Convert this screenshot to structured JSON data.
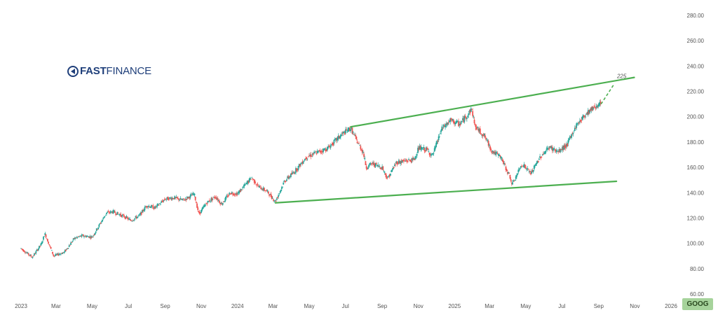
{
  "brand": {
    "name_bold": "FAST",
    "name_regular": "FINANCE",
    "suffix": ""
  },
  "ticker": "GOOG",
  "colors": {
    "up": "#26a69a",
    "down": "#ef5350",
    "trend": "#4caf50",
    "text": "#555555",
    "badge": "#a6d39b"
  },
  "chart_data": {
    "type": "candlestick",
    "symbol": "GOOG",
    "ylim": [
      60,
      290
    ],
    "y_ticks": [
      "60.00",
      "80.00",
      "100.00",
      "120.00",
      "140.00",
      "160.00",
      "180.00",
      "200.00",
      "220.00",
      "240.00",
      "260.00",
      "280.00"
    ],
    "x_ticks": [
      "2023",
      "Mar",
      "May",
      "Jul",
      "Sep",
      "Nov",
      "2024",
      "Mar",
      "May",
      "Jul",
      "Sep",
      "Nov",
      "2025",
      "Mar",
      "May",
      "Jul",
      "Sep",
      "Nov",
      "2026"
    ],
    "price_path": [
      [
        "2023-01-01",
        96
      ],
      [
        "2023-01-20",
        89
      ],
      [
        "2023-02-05",
        100
      ],
      [
        "2023-02-10",
        108
      ],
      [
        "2023-02-25",
        90
      ],
      [
        "2023-03-15",
        93
      ],
      [
        "2023-04-01",
        104
      ],
      [
        "2023-04-15",
        106
      ],
      [
        "2023-05-01",
        105
      ],
      [
        "2023-05-10",
        112
      ],
      [
        "2023-05-25",
        124
      ],
      [
        "2023-06-05",
        125
      ],
      [
        "2023-06-25",
        121
      ],
      [
        "2023-07-05",
        118
      ],
      [
        "2023-07-20",
        122
      ],
      [
        "2023-08-01",
        130
      ],
      [
        "2023-08-15",
        128
      ],
      [
        "2023-09-01",
        135
      ],
      [
        "2023-09-15",
        136
      ],
      [
        "2023-10-01",
        134
      ],
      [
        "2023-10-20",
        139
      ],
      [
        "2023-10-28",
        123
      ],
      [
        "2023-11-10",
        132
      ],
      [
        "2023-11-25",
        137
      ],
      [
        "2023-12-05",
        131
      ],
      [
        "2023-12-20",
        140
      ],
      [
        "2024-01-01",
        139
      ],
      [
        "2024-01-25",
        152
      ],
      [
        "2024-02-05",
        145
      ],
      [
        "2024-02-20",
        141
      ],
      [
        "2024-03-05",
        133
      ],
      [
        "2024-03-20",
        149
      ],
      [
        "2024-04-05",
        156
      ],
      [
        "2024-04-26",
        168
      ],
      [
        "2024-05-10",
        171
      ],
      [
        "2024-06-01",
        175
      ],
      [
        "2024-06-25",
        186
      ],
      [
        "2024-07-10",
        191
      ],
      [
        "2024-07-20",
        181
      ],
      [
        "2024-07-31",
        172
      ],
      [
        "2024-08-05",
        160
      ],
      [
        "2024-08-15",
        163
      ],
      [
        "2024-09-01",
        160
      ],
      [
        "2024-09-10",
        151
      ],
      [
        "2024-09-25",
        164
      ],
      [
        "2024-10-10",
        165
      ],
      [
        "2024-10-25",
        166
      ],
      [
        "2024-11-01",
        175
      ],
      [
        "2024-11-15",
        174
      ],
      [
        "2024-11-25",
        169
      ],
      [
        "2024-12-10",
        190
      ],
      [
        "2024-12-25",
        197
      ],
      [
        "2025-01-10",
        194
      ],
      [
        "2025-01-30",
        206
      ],
      [
        "2025-02-05",
        192
      ],
      [
        "2025-02-20",
        185
      ],
      [
        "2025-03-05",
        173
      ],
      [
        "2025-03-20",
        168
      ],
      [
        "2025-04-05",
        152
      ],
      [
        "2025-04-08",
        146
      ],
      [
        "2025-04-25",
        163
      ],
      [
        "2025-05-10",
        155
      ],
      [
        "2025-05-25",
        168
      ],
      [
        "2025-06-10",
        176
      ],
      [
        "2025-06-25",
        172
      ],
      [
        "2025-07-10",
        178
      ],
      [
        "2025-07-25",
        193
      ],
      [
        "2025-08-10",
        202
      ],
      [
        "2025-08-25",
        208
      ],
      [
        "2025-09-05",
        210
      ]
    ],
    "trendlines": [
      {
        "label": "upper",
        "points": [
          [
            "2024-07-10",
            192
          ],
          [
            "2025-10-31",
            231
          ]
        ]
      },
      {
        "label": "lower",
        "points": [
          [
            "2024-03-05",
            132
          ],
          [
            "2025-10-01",
            149
          ]
        ]
      }
    ],
    "projection": {
      "points": [
        [
          "2025-09-05",
          210
        ],
        [
          "2025-09-26",
          225
        ]
      ],
      "label": "225"
    }
  }
}
